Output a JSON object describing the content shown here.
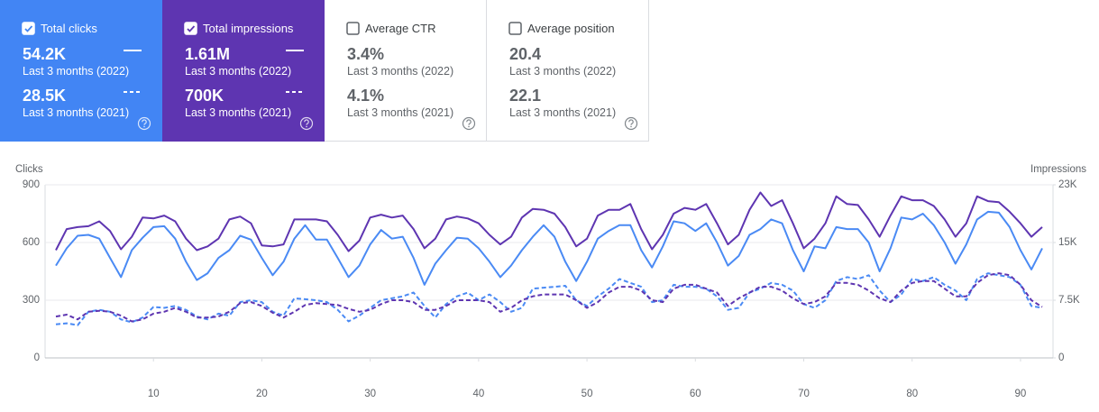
{
  "cards": [
    {
      "title": "Total clicks",
      "checked": true,
      "color": "#4285f4",
      "metrics": [
        {
          "value": "54.2K",
          "period": "Last 3 months (2022)"
        },
        {
          "value": "28.5K",
          "period": "Last 3 months (2021)"
        }
      ]
    },
    {
      "title": "Total impressions",
      "checked": true,
      "color": "#5e35b1",
      "metrics": [
        {
          "value": "1.61M",
          "period": "Last 3 months (2022)"
        },
        {
          "value": "700K",
          "period": "Last 3 months (2021)"
        }
      ]
    },
    {
      "title": "Average CTR",
      "checked": false,
      "color": "#ffffff",
      "metrics": [
        {
          "value": "3.4%",
          "period": "Last 3 months (2022)"
        },
        {
          "value": "4.1%",
          "period": "Last 3 months (2021)"
        }
      ]
    },
    {
      "title": "Average position",
      "checked": false,
      "color": "#ffffff",
      "metrics": [
        {
          "value": "20.4",
          "period": "Last 3 months (2022)"
        },
        {
          "value": "22.1",
          "period": "Last 3 months (2021)"
        }
      ]
    }
  ],
  "chart_data": {
    "type": "line",
    "y_label": "Clicks",
    "y2_label": "Impressions",
    "x": [
      1,
      2,
      3,
      4,
      5,
      6,
      7,
      8,
      9,
      10,
      11,
      12,
      13,
      14,
      15,
      16,
      17,
      18,
      19,
      20,
      21,
      22,
      23,
      24,
      25,
      26,
      27,
      28,
      29,
      30,
      31,
      32,
      33,
      34,
      35,
      36,
      37,
      38,
      39,
      40,
      41,
      42,
      43,
      44,
      45,
      46,
      47,
      48,
      49,
      50,
      51,
      52,
      53,
      54,
      55,
      56,
      57,
      58,
      59,
      60,
      61,
      62,
      63,
      64,
      65,
      66,
      67,
      68,
      69,
      70,
      71,
      72,
      73,
      74,
      75,
      76,
      77,
      78,
      79,
      80,
      81,
      82,
      83,
      84,
      85,
      86,
      87,
      88,
      89,
      90,
      91,
      92
    ],
    "xlim": [
      0,
      93
    ],
    "xticks": [
      10,
      20,
      30,
      40,
      50,
      60,
      70,
      80,
      90
    ],
    "ylim": [
      0,
      900
    ],
    "yticks": [
      0,
      300,
      600,
      900
    ],
    "y2lim": [
      0,
      22500
    ],
    "y2ticks": [
      0,
      {
        "value": 7500,
        "label": "7.5K"
      },
      {
        "value": 15000,
        "label": "15K"
      },
      {
        "value": 22500,
        "label": "23K"
      }
    ],
    "grid": true,
    "series": [
      {
        "color": "#4a8af4",
        "dashed": false,
        "axis": "y",
        "values": [
          480,
          570,
          635,
          640,
          620,
          520,
          420,
          560,
          625,
          680,
          685,
          620,
          500,
          405,
          440,
          520,
          560,
          635,
          615,
          520,
          430,
          500,
          620,
          690,
          615,
          615,
          520,
          420,
          480,
          590,
          665,
          620,
          630,
          520,
          380,
          490,
          560,
          625,
          620,
          570,
          500,
          420,
          480,
          560,
          630,
          690,
          630,
          500,
          400,
          500,
          620,
          660,
          690,
          690,
          560,
          470,
          580,
          710,
          700,
          660,
          700,
          600,
          480,
          530,
          640,
          670,
          720,
          700,
          560,
          450,
          580,
          570,
          680,
          670,
          670,
          600,
          450,
          570,
          730,
          720,
          750,
          690,
          600,
          490,
          590,
          720,
          760,
          755,
          680,
          560,
          460,
          570
        ]
      },
      {
        "color": "#5e35b1",
        "dashed": false,
        "axis": "y2",
        "values": [
          14000,
          16750,
          17000,
          17125,
          17750,
          16500,
          14125,
          15750,
          18250,
          18125,
          18500,
          17750,
          15500,
          14000,
          14500,
          15500,
          18000,
          18375,
          17500,
          14625,
          14500,
          14750,
          18000,
          18000,
          18000,
          17750,
          16000,
          13875,
          15250,
          18250,
          18625,
          18250,
          18500,
          16750,
          14250,
          15500,
          18000,
          18375,
          18125,
          17500,
          16000,
          14750,
          15750,
          18250,
          19375,
          19250,
          18750,
          17000,
          14500,
          15500,
          18500,
          19250,
          19250,
          20000,
          16750,
          14125,
          16000,
          18750,
          19500,
          19250,
          20000,
          17500,
          14750,
          16000,
          19250,
          21500,
          19750,
          20500,
          17500,
          14250,
          15500,
          17500,
          21000,
          20000,
          19875,
          18000,
          15750,
          18500,
          21000,
          20500,
          20500,
          19750,
          18000,
          15750,
          17500,
          21000,
          20375,
          20250,
          19000,
          17500,
          15750,
          17000
        ]
      },
      {
        "color": "#4a8af4",
        "dashed": true,
        "axis": "y",
        "values": [
          175,
          180,
          170,
          240,
          250,
          240,
          200,
          185,
          210,
          265,
          260,
          270,
          250,
          215,
          200,
          230,
          220,
          290,
          300,
          290,
          240,
          220,
          310,
          305,
          300,
          290,
          250,
          190,
          220,
          260,
          300,
          310,
          320,
          340,
          270,
          210,
          280,
          320,
          340,
          300,
          330,
          290,
          240,
          260,
          360,
          365,
          370,
          375,
          300,
          270,
          320,
          360,
          410,
          390,
          370,
          290,
          300,
          380,
          370,
          370,
          360,
          320,
          250,
          260,
          340,
          360,
          390,
          380,
          350,
          280,
          260,
          300,
          400,
          420,
          410,
          430,
          350,
          290,
          330,
          410,
          400,
          420,
          380,
          350,
          300,
          410,
          440,
          430,
          420,
          380,
          270,
          260
        ]
      },
      {
        "color": "#5e35b1",
        "dashed": true,
        "axis": "y2",
        "values": [
          5375,
          5625,
          5000,
          6000,
          6125,
          6000,
          5500,
          4750,
          5000,
          5750,
          6000,
          6500,
          6000,
          5250,
          5250,
          5375,
          6000,
          7125,
          7250,
          6750,
          5875,
          5250,
          6000,
          6875,
          7125,
          7000,
          6875,
          6375,
          6000,
          6250,
          7000,
          7500,
          7500,
          7250,
          6250,
          6250,
          6750,
          7500,
          7500,
          7500,
          7250,
          6000,
          6500,
          7500,
          8000,
          8250,
          8250,
          8250,
          7500,
          6500,
          7250,
          8500,
          9250,
          9250,
          8750,
          7500,
          7250,
          9000,
          9500,
          9500,
          9000,
          8500,
          6750,
          7750,
          8500,
          9250,
          9250,
          8750,
          7750,
          7000,
          7250,
          8000,
          9750,
          9750,
          9500,
          8750,
          7750,
          7250,
          8750,
          9750,
          10000,
          10000,
          9000,
          8000,
          8000,
          9750,
          10750,
          11000,
          10750,
          9500,
          7500,
          6625
        ]
      }
    ]
  }
}
